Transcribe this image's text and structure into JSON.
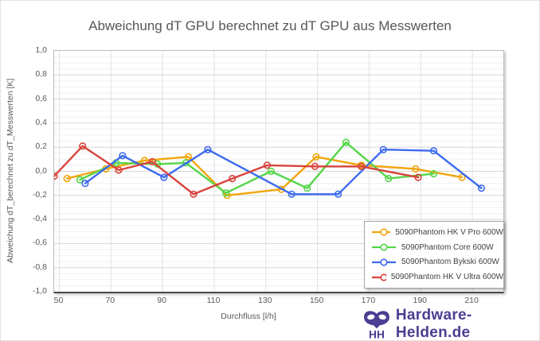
{
  "chart_data": {
    "type": "line",
    "title": "Abweichung dT GPU berechnet zu dT GPU aus Messwerten",
    "xlabel": "Durchfluss [l/h]",
    "ylabel": "Abweichung dT_berechnet zu dT_Messwerten  [K]",
    "xlim": [
      48,
      222
    ],
    "ylim": [
      -1.0,
      1.0
    ],
    "x_ticks": {
      "values": [
        50,
        70,
        90,
        110,
        130,
        150,
        170,
        190,
        210
      ],
      "labels": [
        "50",
        "70",
        "90",
        "110",
        "130",
        "150",
        "170",
        "190",
        "210"
      ]
    },
    "y_ticks": {
      "values": [
        1.0,
        0.8,
        0.6,
        0.4,
        0.2,
        0.0,
        -0.2,
        -0.4,
        -0.6,
        -0.8,
        -1.0
      ],
      "labels": [
        "1,0",
        "0,8",
        "0,6",
        "0,4",
        "0,2",
        "0,0",
        "-0,2",
        "-0,4",
        "-0,6",
        "-0,8",
        "-1,0"
      ]
    },
    "grid": {
      "y_major_step": 0.2,
      "y_minor_step": 0.05,
      "x_gridline_at_each_tick": true
    },
    "legend_position": "bottom-right-inside",
    "marker": "open-circle",
    "series": [
      {
        "name": "5090Phantom HK V Pro 600W",
        "color": "#F2A50C",
        "x": [
          53,
          68,
          83,
          100,
          115,
          136,
          149.5,
          167,
          188,
          206
        ],
        "y": [
          -0.06,
          0.02,
          0.09,
          0.12,
          -0.2,
          -0.15,
          0.12,
          0.05,
          0.02,
          -0.05
        ]
      },
      {
        "name": "5090Phantom Core 600W",
        "color": "#56D64A",
        "x": [
          58,
          72,
          88,
          99,
          114.5,
          132,
          146,
          161,
          177.5,
          195
        ],
        "y": [
          -0.07,
          0.07,
          0.06,
          0.07,
          -0.18,
          0.0,
          -0.14,
          0.24,
          -0.06,
          -0.02
        ]
      },
      {
        "name": "5090Phantom Bykski 600W",
        "color": "#3C6AEF",
        "x": [
          60,
          74.5,
          90.5,
          107.5,
          140,
          158,
          175.5,
          195,
          213.5
        ],
        "y": [
          -0.1,
          0.13,
          -0.05,
          0.18,
          -0.19,
          -0.19,
          0.18,
          0.17,
          -0.14
        ]
      },
      {
        "name": "5090Phantom HK V Ultra 600W",
        "color": "#D8433C",
        "x": [
          48,
          59,
          73,
          86,
          102,
          117,
          130.5,
          149,
          167,
          189
        ],
        "y": [
          -0.04,
          0.21,
          0.01,
          0.08,
          -0.19,
          -0.06,
          0.05,
          0.04,
          0.04,
          -0.05
        ]
      }
    ]
  },
  "watermark": {
    "text": "Hardware-Helden.de",
    "color": "#4A3E92",
    "logo": "hardware-helden-mask-logo"
  }
}
